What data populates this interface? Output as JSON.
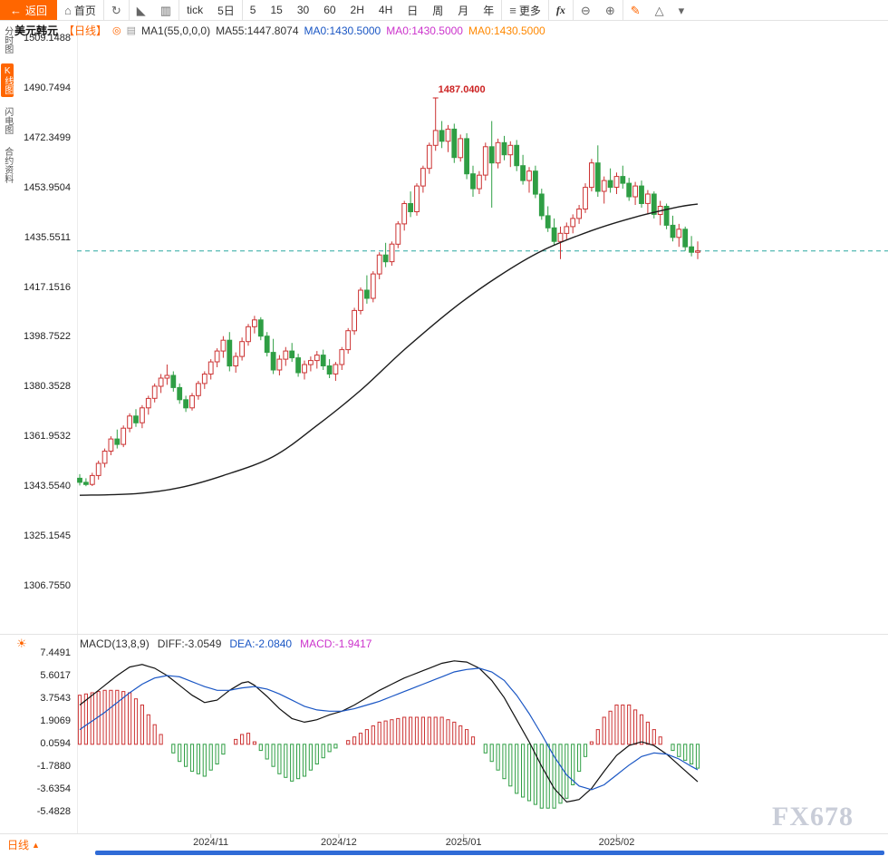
{
  "app": {
    "watermark": "FX678"
  },
  "icon_glyphs": {
    "back": "←",
    "home": "⌂",
    "refresh": "↻",
    "area_chart": "◣",
    "candle_chart": "▥",
    "menu": "≡",
    "zoom_out": "⊖",
    "zoom_in": "⊕",
    "pencil": "✎",
    "triangle": "△",
    "caret": "▾",
    "macd_settings": "☀",
    "period_up": "▲",
    "header_circle": "◎",
    "ma_toggle": "▤"
  },
  "toolbar": {
    "back_label": "返回",
    "items": [
      {
        "name": "home-button",
        "label": "首页",
        "icon": "home",
        "sep": true
      },
      {
        "name": "refresh-button",
        "icon": "refresh",
        "sep": true
      },
      {
        "name": "area-chart-button",
        "icon": "area_chart",
        "sep": false
      },
      {
        "name": "candle-chart-button",
        "icon": "candle_chart",
        "sep": true
      },
      {
        "name": "interval-tick-button",
        "label": "tick",
        "sep": false
      },
      {
        "name": "interval-5day-button",
        "label": "5日",
        "sep": true
      },
      {
        "name": "interval-5min-button",
        "label": "5",
        "sep": false
      },
      {
        "name": "interval-15min-button",
        "label": "15",
        "sep": false
      },
      {
        "name": "interval-30min-button",
        "label": "30",
        "sep": false
      },
      {
        "name": "interval-60min-button",
        "label": "60",
        "sep": false
      },
      {
        "name": "interval-2h-button",
        "label": "2H",
        "sep": false
      },
      {
        "name": "interval-4h-button",
        "label": "4H",
        "sep": false
      },
      {
        "name": "interval-day-button",
        "label": "日",
        "sep": false
      },
      {
        "name": "interval-week-button",
        "label": "周",
        "sep": false
      },
      {
        "name": "interval-month-button",
        "label": "月",
        "sep": false
      },
      {
        "name": "interval-year-button",
        "label": "年",
        "sep": true
      },
      {
        "name": "more-button",
        "label": "更多",
        "icon": "menu",
        "sep": true
      },
      {
        "name": "indicator-fx-button",
        "label": "fx",
        "cls": "fx",
        "sep": true
      },
      {
        "name": "zoom-out-button",
        "icon": "zoom_out",
        "sep": false
      },
      {
        "name": "zoom-in-button",
        "icon": "zoom_in",
        "sep": true
      },
      {
        "name": "draw-pencil-button",
        "icon": "pencil",
        "icon_cls": "orange",
        "sep": false
      },
      {
        "name": "draw-triangle-button",
        "icon": "triangle",
        "sep": false
      },
      {
        "name": "draw-more-button",
        "icon": "caret",
        "sep": false
      }
    ]
  },
  "sidebar": {
    "items": [
      {
        "name": "sidebar-time-chart",
        "label": "分时图",
        "selected": false
      },
      {
        "name": "sidebar-kline-chart",
        "label": "K线图",
        "selected": true
      },
      {
        "name": "sidebar-lightning-chart",
        "label": "闪电图",
        "selected": false
      },
      {
        "name": "sidebar-contract-info",
        "label": "合约资料",
        "selected": false
      }
    ]
  },
  "chart_header": {
    "symbol": "美元韩元",
    "period": "【日线】",
    "ma_settings": "MA1(55,0,0,0)",
    "ma55": "MA55:1447.8074",
    "ma0_blue": "MA0:1430.5000",
    "ma0_magenta": "MA0:1430.5000",
    "ma0_orange": "MA0:1430.5000"
  },
  "macd_header": {
    "formula": "MACD(13,8,9)",
    "diff": "DIFF:-3.0549",
    "dea": "DEA:-2.0840",
    "macd": "MACD:-1.9417"
  },
  "bottom": {
    "period_tab": "日线"
  },
  "colors": {
    "up": "#cc3333",
    "down": "#2f9e44",
    "ma": "#1c1c1c",
    "diff_line": "#111111",
    "dea_line": "#1a56c4",
    "dash_line": "#2aa7a0",
    "accent": "#ff6600",
    "peak_label": "#cc2222",
    "scrollbar": "#2f6bd7"
  },
  "chart_data": {
    "type": "candlestick",
    "symbol": "美元韩元",
    "period": "日线",
    "grid": false,
    "y_range": [
      1306.755,
      1509.1488
    ],
    "y_ticks": [
      "1509.1488",
      "1490.7494",
      "1472.3499",
      "1453.9504",
      "1435.5511",
      "1417.1516",
      "1398.7522",
      "1380.3528",
      "1361.9532",
      "1343.5540",
      "1325.1545",
      "1306.7550"
    ],
    "x_ticks": [
      {
        "label": "2024/11",
        "i": 21
      },
      {
        "label": "2024/12",
        "i": 41.5
      },
      {
        "label": "2025/01",
        "i": 61.5
      },
      {
        "label": "2025/02",
        "i": 86
      }
    ],
    "current_price_line": {
      "value": 1430.5,
      "style": "dashed"
    },
    "peak_annotation": {
      "label": "1487.0400",
      "value": 1487.04,
      "i": 57
    },
    "candles": [
      [
        1346.5,
        1348.0,
        1343.8,
        1345.0
      ],
      [
        1345.0,
        1346.5,
        1343.55,
        1344.2
      ],
      [
        1344.2,
        1348.5,
        1343.6,
        1347.5
      ],
      [
        1347.5,
        1353.0,
        1346.0,
        1352.0
      ],
      [
        1352.0,
        1357.5,
        1350.5,
        1356.5
      ],
      [
        1356.5,
        1362.0,
        1355.0,
        1361.0
      ],
      [
        1361.0,
        1364.5,
        1357.5,
        1359.0
      ],
      [
        1359.0,
        1366.0,
        1358.0,
        1365.0
      ],
      [
        1365.0,
        1370.5,
        1363.5,
        1369.5
      ],
      [
        1369.5,
        1372.0,
        1365.5,
        1367.0
      ],
      [
        1367.0,
        1373.5,
        1365.0,
        1372.5
      ],
      [
        1372.5,
        1377.0,
        1370.0,
        1376.0
      ],
      [
        1376.0,
        1381.5,
        1374.5,
        1380.5
      ],
      [
        1380.5,
        1385.0,
        1378.0,
        1383.5
      ],
      [
        1383.5,
        1388.5,
        1381.0,
        1384.5
      ],
      [
        1384.5,
        1386.0,
        1378.5,
        1380.0
      ],
      [
        1380.0,
        1381.5,
        1374.0,
        1375.5
      ],
      [
        1375.5,
        1377.0,
        1371.0,
        1372.5
      ],
      [
        1372.5,
        1378.0,
        1371.5,
        1377.0
      ],
      [
        1377.0,
        1382.5,
        1375.5,
        1381.5
      ],
      [
        1381.5,
        1386.0,
        1379.5,
        1385.0
      ],
      [
        1385.0,
        1390.5,
        1383.0,
        1389.5
      ],
      [
        1389.5,
        1394.5,
        1387.5,
        1393.5
      ],
      [
        1393.5,
        1399.0,
        1391.0,
        1397.5
      ],
      [
        1397.5,
        1400.5,
        1386.0,
        1388.0
      ],
      [
        1388.0,
        1393.0,
        1385.5,
        1391.5
      ],
      [
        1391.5,
        1398.5,
        1390.0,
        1397.0
      ],
      [
        1397.0,
        1403.5,
        1395.5,
        1402.5
      ],
      [
        1402.5,
        1406.5,
        1400.0,
        1405.0
      ],
      [
        1405.0,
        1406.0,
        1397.5,
        1399.0
      ],
      [
        1399.0,
        1400.5,
        1391.5,
        1393.0
      ],
      [
        1393.0,
        1398.0,
        1385.0,
        1386.5
      ],
      [
        1386.5,
        1392.0,
        1384.5,
        1390.5
      ],
      [
        1390.5,
        1395.0,
        1388.0,
        1393.5
      ],
      [
        1393.5,
        1396.5,
        1389.5,
        1391.0
      ],
      [
        1391.0,
        1392.5,
        1384.0,
        1385.5
      ],
      [
        1385.5,
        1390.0,
        1383.0,
        1388.5
      ],
      [
        1388.5,
        1391.5,
        1386.0,
        1390.0
      ],
      [
        1390.0,
        1393.5,
        1387.0,
        1392.0
      ],
      [
        1392.0,
        1394.0,
        1386.5,
        1388.0
      ],
      [
        1388.0,
        1390.5,
        1383.5,
        1385.0
      ],
      [
        1385.0,
        1389.5,
        1382.5,
        1388.5
      ],
      [
        1388.5,
        1395.0,
        1386.5,
        1394.0
      ],
      [
        1394.0,
        1402.0,
        1392.5,
        1401.0
      ],
      [
        1401.0,
        1409.5,
        1399.5,
        1408.5
      ],
      [
        1408.5,
        1417.0,
        1407.0,
        1416.0
      ],
      [
        1416.0,
        1421.5,
        1411.0,
        1413.0
      ],
      [
        1413.0,
        1423.0,
        1411.5,
        1422.0
      ],
      [
        1422.0,
        1430.0,
        1420.0,
        1429.0
      ],
      [
        1429.0,
        1433.5,
        1424.5,
        1426.5
      ],
      [
        1426.5,
        1434.0,
        1425.0,
        1433.0
      ],
      [
        1433.0,
        1441.5,
        1431.5,
        1440.5
      ],
      [
        1440.5,
        1449.0,
        1438.0,
        1448.0
      ],
      [
        1448.0,
        1452.5,
        1443.0,
        1445.0
      ],
      [
        1445.0,
        1455.5,
        1443.5,
        1454.5
      ],
      [
        1454.5,
        1462.0,
        1452.0,
        1461.0
      ],
      [
        1461.0,
        1470.5,
        1459.0,
        1469.5
      ],
      [
        1469.5,
        1487.04,
        1467.5,
        1475.0
      ],
      [
        1475.0,
        1478.5,
        1468.5,
        1471.0
      ],
      [
        1471.0,
        1477.0,
        1467.0,
        1475.5
      ],
      [
        1475.5,
        1477.5,
        1463.0,
        1465.0
      ],
      [
        1465.0,
        1473.5,
        1463.5,
        1472.0
      ],
      [
        1472.0,
        1474.0,
        1457.0,
        1459.0
      ],
      [
        1459.0,
        1462.0,
        1450.5,
        1453.5
      ],
      [
        1453.5,
        1460.0,
        1451.5,
        1458.5
      ],
      [
        1458.5,
        1470.5,
        1456.5,
        1469.0
      ],
      [
        1469.0,
        1478.5,
        1446.5,
        1463.0
      ],
      [
        1463.0,
        1472.0,
        1461.0,
        1470.5
      ],
      [
        1470.5,
        1473.0,
        1464.0,
        1466.0
      ],
      [
        1466.0,
        1471.0,
        1461.5,
        1469.5
      ],
      [
        1469.5,
        1471.5,
        1460.0,
        1462.0
      ],
      [
        1462.0,
        1466.0,
        1455.0,
        1456.5
      ],
      [
        1456.5,
        1461.5,
        1452.0,
        1460.0
      ],
      [
        1460.0,
        1462.0,
        1450.0,
        1451.5
      ],
      [
        1451.5,
        1453.5,
        1442.0,
        1443.5
      ],
      [
        1443.5,
        1447.0,
        1437.5,
        1439.0
      ],
      [
        1439.0,
        1442.5,
        1432.5,
        1434.0
      ],
      [
        1434.0,
        1439.5,
        1427.5,
        1437.0
      ],
      [
        1437.0,
        1441.0,
        1434.5,
        1439.5
      ],
      [
        1439.5,
        1444.0,
        1437.0,
        1442.5
      ],
      [
        1442.5,
        1447.5,
        1440.5,
        1446.0
      ],
      [
        1446.0,
        1455.5,
        1444.5,
        1454.0
      ],
      [
        1454.0,
        1464.5,
        1452.5,
        1463.0
      ],
      [
        1463.0,
        1469.5,
        1450.5,
        1452.5
      ],
      [
        1452.5,
        1458.0,
        1448.0,
        1456.5
      ],
      [
        1456.5,
        1461.0,
        1452.0,
        1454.0
      ],
      [
        1454.0,
        1459.5,
        1451.5,
        1458.0
      ],
      [
        1458.0,
        1462.0,
        1453.5,
        1455.5
      ],
      [
        1455.5,
        1457.5,
        1449.0,
        1450.5
      ],
      [
        1450.5,
        1456.0,
        1447.5,
        1454.5
      ],
      [
        1454.5,
        1456.5,
        1446.5,
        1448.0
      ],
      [
        1448.0,
        1453.0,
        1444.0,
        1451.5
      ],
      [
        1451.5,
        1452.5,
        1442.5,
        1444.0
      ],
      [
        1444.0,
        1449.0,
        1440.0,
        1447.0
      ],
      [
        1447.0,
        1448.0,
        1438.5,
        1440.0
      ],
      [
        1440.0,
        1443.5,
        1434.0,
        1435.5
      ],
      [
        1435.5,
        1440.5,
        1432.0,
        1438.5
      ],
      [
        1438.5,
        1439.5,
        1430.5,
        1432.0
      ],
      [
        1432.0,
        1436.0,
        1428.5,
        1430.0
      ],
      [
        1430.0,
        1434.0,
        1427.5,
        1430.5
      ]
    ],
    "ma55": {
      "label": "MA55",
      "current": 1447.8074,
      "keypoints": [
        [
          0,
          1340.2
        ],
        [
          9,
          1340.8
        ],
        [
          16,
          1343.0
        ],
        [
          23,
          1347.5
        ],
        [
          31,
          1354.5
        ],
        [
          38,
          1366.0
        ],
        [
          45,
          1379.0
        ],
        [
          52,
          1394.0
        ],
        [
          60,
          1409.5
        ],
        [
          67,
          1421.0
        ],
        [
          74,
          1430.5
        ],
        [
          82,
          1438.0
        ],
        [
          89,
          1443.0
        ],
        [
          96,
          1446.8
        ],
        [
          99,
          1447.8
        ]
      ]
    },
    "macd": {
      "label": "MACD(13,8,9)",
      "diff_current": -3.0549,
      "dea_current": -2.084,
      "macd_current": -1.9417,
      "hist_formula": "2*(diff-dea)",
      "y_ticks": [
        "7.4491",
        "5.6017",
        "3.7543",
        "1.9069",
        "0.0594",
        "-1.7880",
        "-3.6354",
        "-5.4828"
      ],
      "diff": [
        3.2,
        3.6,
        4.0,
        4.4,
        4.8,
        5.2,
        5.6,
        5.95,
        6.3,
        6.4,
        6.5,
        6.35,
        6.2,
        5.9,
        5.6,
        5.2,
        4.8,
        4.4,
        4.0,
        3.7,
        3.4,
        3.5,
        3.6,
        4.0,
        4.4,
        4.7,
        5.0,
        5.1,
        4.8,
        4.35,
        3.9,
        3.4,
        2.9,
        2.5,
        2.1,
        1.95,
        1.8,
        1.9,
        2.0,
        2.2,
        2.4,
        2.55,
        2.7,
        2.95,
        3.2,
        3.5,
        3.8,
        4.1,
        4.4,
        4.65,
        4.9,
        5.15,
        5.4,
        5.6,
        5.8,
        6.0,
        6.2,
        6.4,
        6.6,
        6.7,
        6.8,
        6.75,
        6.7,
        6.45,
        6.2,
        5.7,
        5.2,
        4.5,
        3.8,
        2.9,
        2.0,
        1.1,
        0.2,
        -0.8,
        -1.8,
        -2.7,
        -3.6,
        -4.15,
        -4.7,
        -4.6,
        -4.5,
        -4.05,
        -3.6,
        -2.9,
        -2.2,
        -1.55,
        -0.9,
        -0.5,
        -0.1,
        0.05,
        0.2,
        0.05,
        -0.1,
        -0.45,
        -0.8,
        -1.25,
        -1.7,
        -2.15,
        -2.6,
        -3.0549
      ],
      "dea": [
        1.2,
        1.55,
        1.9,
        2.25,
        2.6,
        3.0,
        3.4,
        3.8,
        4.2,
        4.55,
        4.9,
        5.15,
        5.4,
        5.5,
        5.6,
        5.55,
        5.5,
        5.3,
        5.1,
        4.9,
        4.7,
        4.55,
        4.4,
        4.4,
        4.4,
        4.5,
        4.6,
        4.65,
        4.7,
        4.6,
        4.5,
        4.3,
        4.1,
        3.85,
        3.6,
        3.35,
        3.1,
        2.95,
        2.8,
        2.75,
        2.7,
        2.7,
        2.7,
        2.8,
        2.9,
        3.05,
        3.2,
        3.35,
        3.5,
        3.7,
        3.9,
        4.1,
        4.3,
        4.5,
        4.7,
        4.9,
        5.1,
        5.3,
        5.5,
        5.7,
        5.9,
        6.0,
        6.1,
        6.15,
        6.2,
        6.05,
        5.9,
        5.55,
        5.2,
        4.6,
        4.0,
        3.25,
        2.5,
        1.65,
        0.8,
        -0.1,
        -1.0,
        -1.75,
        -2.5,
        -2.95,
        -3.4,
        -3.55,
        -3.7,
        -3.5,
        -3.3,
        -2.9,
        -2.5,
        -2.1,
        -1.7,
        -1.35,
        -1.0,
        -0.85,
        -0.7,
        -0.75,
        -0.8,
        -1.0,
        -1.2,
        -1.5,
        -1.8,
        -2.084
      ]
    }
  }
}
